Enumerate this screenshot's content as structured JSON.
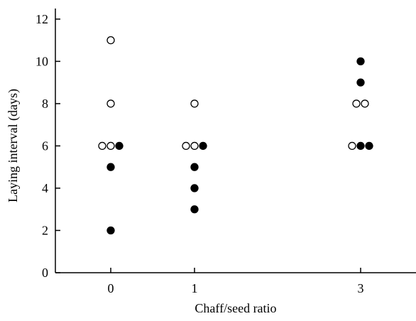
{
  "chart_data": {
    "type": "scatter",
    "title": "",
    "xlabel": "Chaff/seed ratio",
    "ylabel": "Laying interval (days)",
    "ylim": [
      0,
      12.5
    ],
    "y_ticks": [
      0,
      2,
      4,
      6,
      8,
      10,
      12
    ],
    "x_categories": [
      "0",
      "1",
      "3"
    ],
    "grid": false,
    "legend": "none",
    "series": [
      {
        "marker": "open-circle",
        "color": "#000000",
        "points": [
          {
            "x": "0",
            "y": 11
          },
          {
            "x": "0",
            "y": 8
          },
          {
            "x": "0",
            "y": 6
          },
          {
            "x": "0",
            "y": 6
          },
          {
            "x": "1",
            "y": 8
          },
          {
            "x": "1",
            "y": 6
          },
          {
            "x": "1",
            "y": 6
          },
          {
            "x": "3",
            "y": 8
          },
          {
            "x": "3",
            "y": 8
          },
          {
            "x": "3",
            "y": 6
          }
        ]
      },
      {
        "marker": "filled-circle",
        "color": "#000000",
        "points": [
          {
            "x": "0",
            "y": 6
          },
          {
            "x": "0",
            "y": 5
          },
          {
            "x": "0",
            "y": 2
          },
          {
            "x": "1",
            "y": 6
          },
          {
            "x": "1",
            "y": 5
          },
          {
            "x": "1",
            "y": 4
          },
          {
            "x": "1",
            "y": 3
          },
          {
            "x": "3",
            "y": 10
          },
          {
            "x": "3",
            "y": 9
          },
          {
            "x": "3",
            "y": 6
          },
          {
            "x": "3",
            "y": 6
          }
        ]
      }
    ]
  }
}
